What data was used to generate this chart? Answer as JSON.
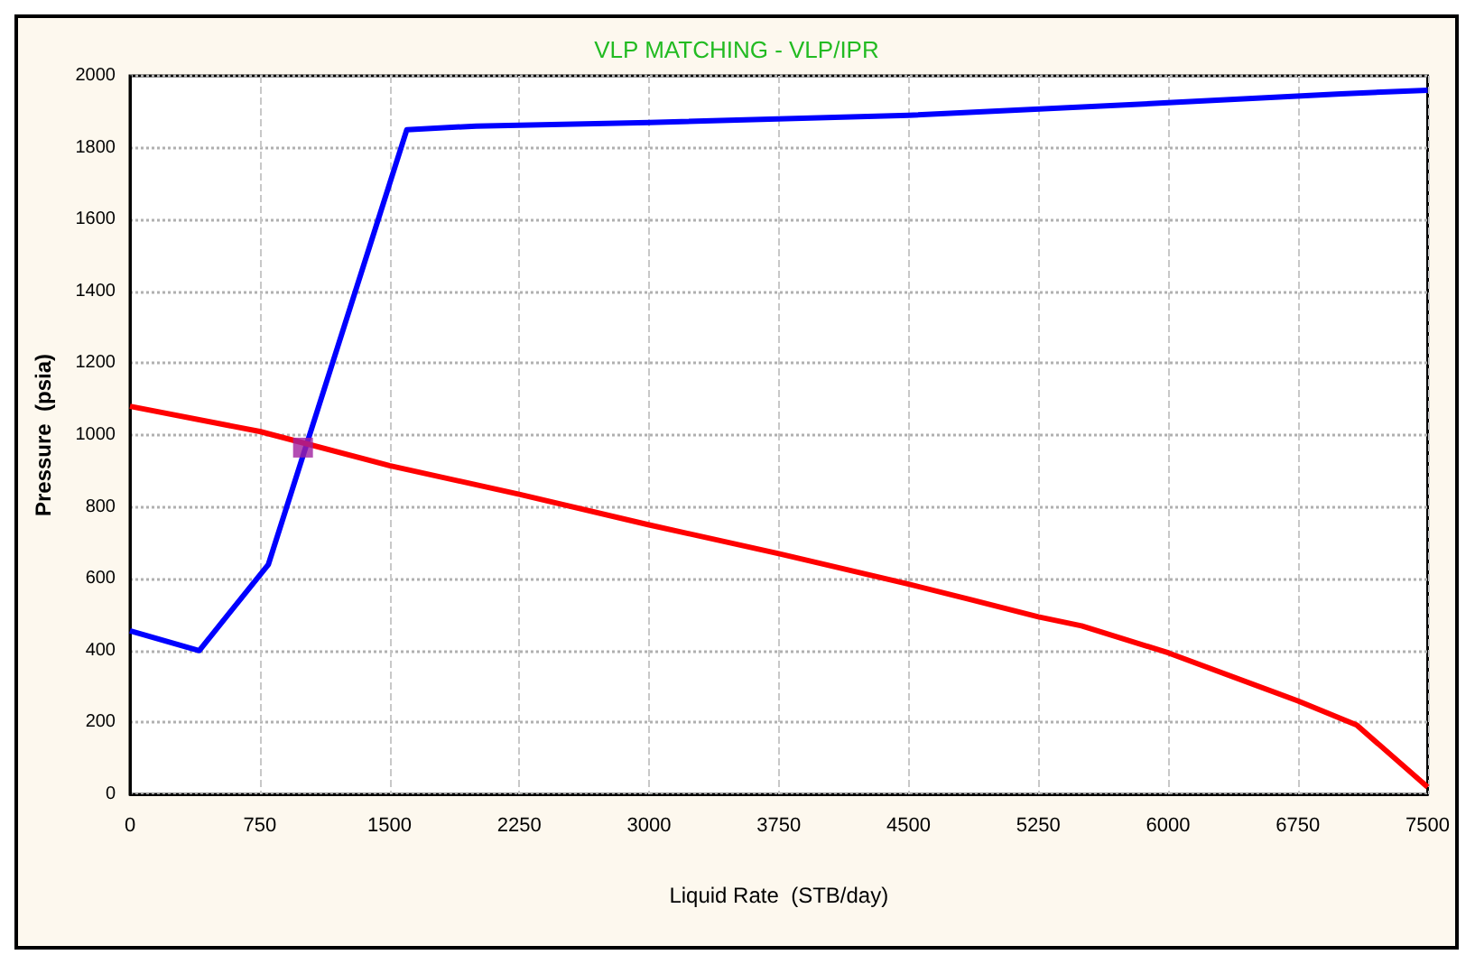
{
  "chart_data": {
    "type": "line",
    "title": "VLP MATCHING - VLP/IPR",
    "xlabel": "Liquid Rate  (STB/day)",
    "ylabel": "Pressure  (psia)",
    "xlim": [
      0,
      7500
    ],
    "ylim": [
      0,
      2000
    ],
    "xticks": [
      0,
      750,
      1500,
      2250,
      3000,
      3750,
      4500,
      5250,
      6000,
      6750,
      7500
    ],
    "yticks": [
      0,
      200,
      400,
      600,
      800,
      1000,
      1200,
      1400,
      1600,
      1800,
      2000
    ],
    "grid": true,
    "marker": "none",
    "line_style": "solid",
    "series": [
      {
        "color": "#0000ff",
        "x": [
          0,
          400,
          800,
          1600,
          2000,
          3000,
          4500,
          6000,
          7000,
          7500
        ],
        "values": [
          455,
          400,
          640,
          1850,
          1860,
          1870,
          1890,
          1925,
          1950,
          1960
        ]
      },
      {
        "color": "#ff0000",
        "x": [
          0,
          750,
          1500,
          2250,
          3000,
          3750,
          4500,
          4850,
          5250,
          5500,
          6000,
          6750,
          7090,
          7500
        ],
        "values": [
          1080,
          1010,
          915,
          835,
          750,
          670,
          585,
          543,
          494,
          469,
          394,
          260,
          193,
          20
        ]
      },
      {
        "type": "scatter",
        "marker": "square",
        "color": "#a020a0",
        "x": [
          1000
        ],
        "values": [
          965
        ]
      }
    ]
  }
}
